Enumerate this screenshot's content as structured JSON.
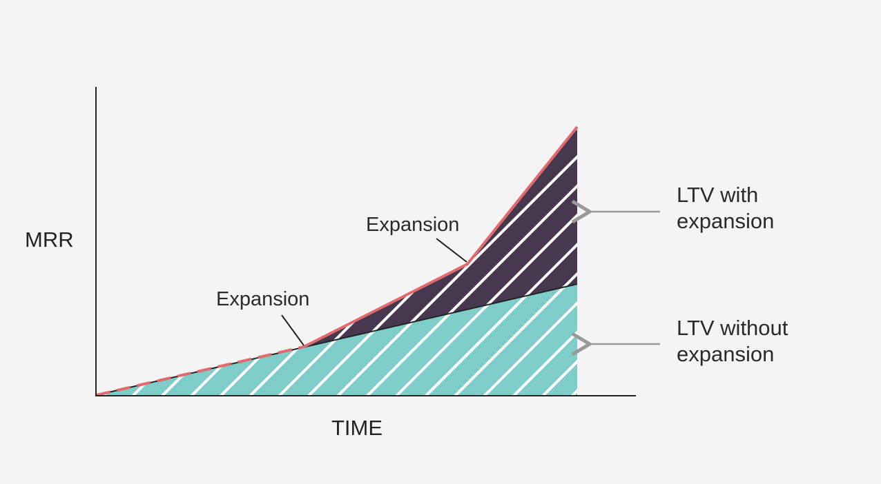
{
  "diagram": {
    "y_axis_label": "MRR",
    "x_axis_label": "TIME",
    "annotations": {
      "first_expansion": "Expansion",
      "second_expansion": "Expansion"
    },
    "legend": {
      "with_expansion_line1": "LTV with",
      "with_expansion_line2": "expansion",
      "without_expansion_line1": "LTV without",
      "without_expansion_line2": "expansion"
    },
    "colors": {
      "background": "#f4f4f4",
      "ltv_without_expansion": "#7ecdc8",
      "ltv_with_expansion": "#47374f",
      "expansion_line": "#e06a6e",
      "base_line": "#222222",
      "axis": "#222222",
      "arrow": "#999999",
      "hatch": "#ffffff"
    }
  }
}
